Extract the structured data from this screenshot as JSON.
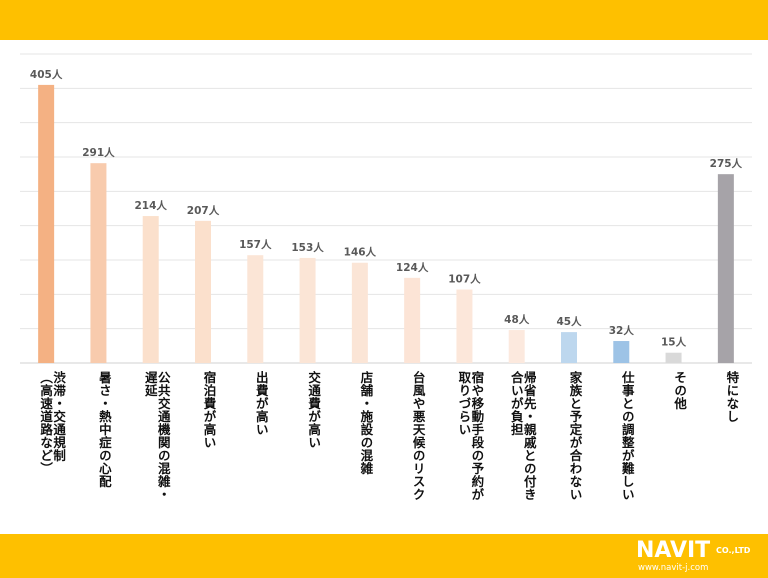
{
  "chart_data": {
    "type": "bar",
    "unit": "人",
    "categories": [
      "渋滞・交通規制（高速道路など）",
      "暑さ・熱中症の心配",
      "公共交通機関の混雑・遅延",
      "宿泊費が高い",
      "出費が高い",
      "交通費が高い",
      "店舗・施設の混雑",
      "台風や悪天候のリスク",
      "宿や移動手段の予約が取りづらい",
      "帰省先・親戚との付き合いが負担",
      "家族と予定が合わない",
      "仕事との調整が難しい",
      "その他",
      "特になし"
    ],
    "label_lines": [
      [
        "渋滞・交通規制",
        "（高速道路など）"
      ],
      [
        "暑さ・熱中症の心配"
      ],
      [
        "公共交通機関の混雑・",
        "遅延"
      ],
      [
        "宿泊費が高い"
      ],
      [
        "出費が高い"
      ],
      [
        "交通費が高い"
      ],
      [
        "店舗・施設の混雑"
      ],
      [
        "台風や悪天候のリスク"
      ],
      [
        "宿や移動手段の予約が",
        "取りづらい"
      ],
      [
        "帰省先・親戚との付き",
        "合いが負担"
      ],
      [
        "家族と予定が合わない"
      ],
      [
        "仕事との調整が難しい"
      ],
      [
        "その他"
      ],
      [
        "特になし"
      ]
    ],
    "values": [
      405,
      291,
      214,
      207,
      157,
      153,
      146,
      124,
      107,
      48,
      45,
      32,
      15,
      275
    ],
    "data_labels": [
      "405人",
      "291人",
      "214人",
      "207人",
      "157人",
      "153人",
      "146人",
      "124人",
      "107人",
      "48人",
      "45人",
      "32人",
      "15人",
      "275人"
    ],
    "colors": [
      "#F4B183",
      "#F8CBAD",
      "#FBE0CC",
      "#FBE0CC",
      "#FBE5D6",
      "#FBE5D6",
      "#FBE5D6",
      "#FCE4D6",
      "#FCE7DA",
      "#FCE9DE",
      "#BDD7EE",
      "#9DC3E6",
      "#D9D9D9",
      "#A6A3A8"
    ],
    "ylim": [
      0,
      450
    ],
    "grid": true,
    "title": "",
    "xlabel": "",
    "ylabel": ""
  },
  "logo": {
    "main": "NAVIT",
    "sub": "CO.,LTD",
    "url": "www.navit-j.com"
  }
}
